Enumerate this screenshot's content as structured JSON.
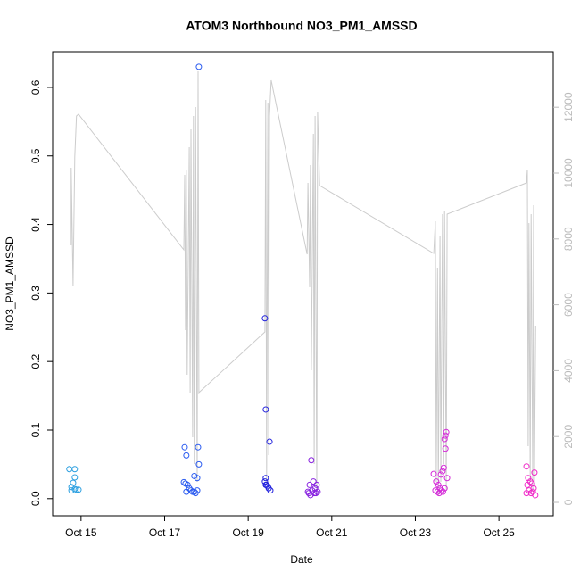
{
  "chart_data": {
    "type": "scatter",
    "title": "ATOM3 Northbound NO3_PM1_AMSSD",
    "xlabel": "Date",
    "ylabel": "NO3_PM1_AMSSD",
    "xlim": [
      14.32,
      26.3
    ],
    "xticks": [
      {
        "value": 15,
        "label": "Oct 15"
      },
      {
        "value": 17,
        "label": "Oct 17"
      },
      {
        "value": 19,
        "label": "Oct 19"
      },
      {
        "value": 21,
        "label": "Oct 21"
      },
      {
        "value": 23,
        "label": "Oct 23"
      },
      {
        "value": 25,
        "label": "Oct 25"
      }
    ],
    "ylim": [
      -0.025,
      0.652
    ],
    "yticks": [
      {
        "value": 0,
        "label": "0.0"
      },
      0.1,
      0.2,
      0.3,
      0.4,
      0.5,
      0.6
    ],
    "y2lim": [
      -406,
      13685
    ],
    "y2ticks": [
      0,
      2000,
      4000,
      6000,
      8000,
      10000,
      12000
    ],
    "y2color": "#bbbbbb",
    "series": [
      {
        "color": "#2b9fe0",
        "x": [
          14.72,
          14.85,
          14.85,
          14.81,
          14.77,
          14.85,
          14.89,
          14.94,
          14.77
        ],
        "values": [
          0.043,
          0.043,
          0.031,
          0.023,
          0.017,
          0.014,
          0.013,
          0.013,
          0.012
        ]
      },
      {
        "color": "#2a5bf0",
        "x": [
          17.48,
          17.52,
          17.8,
          17.82,
          17.82,
          17.71,
          17.78,
          17.46,
          17.5,
          17.55,
          17.59,
          17.63,
          17.67,
          17.71,
          17.74,
          17.78,
          17.52
        ],
        "values": [
          0.075,
          0.063,
          0.075,
          0.05,
          0.63,
          0.033,
          0.03,
          0.024,
          0.022,
          0.02,
          0.015,
          0.012,
          0.01,
          0.01,
          0.008,
          0.012,
          0.01
        ]
      },
      {
        "color": "#2222dd",
        "x": [
          19.4,
          19.42,
          19.51,
          19.42,
          19.4,
          19.44,
          19.47,
          19.49,
          19.53,
          19.42
        ],
        "values": [
          0.263,
          0.13,
          0.083,
          0.03,
          0.025,
          0.02,
          0.018,
          0.015,
          0.012,
          0.02
        ]
      },
      {
        "color": "#8822e0",
        "x": [
          20.51,
          20.43,
          20.47,
          20.56,
          20.6,
          20.64,
          20.49,
          20.58,
          20.62,
          20.66,
          20.53,
          20.45
        ],
        "values": [
          0.056,
          0.01,
          0.02,
          0.025,
          0.015,
          0.02,
          0.005,
          0.008,
          0.008,
          0.01,
          0.012,
          0.008
        ]
      },
      {
        "color": "#d42ad8",
        "x": [
          23.74,
          23.72,
          23.7,
          23.72,
          23.68,
          23.65,
          23.61,
          23.44,
          23.76,
          23.5,
          23.55,
          23.59,
          23.48,
          23.53,
          23.57,
          23.63,
          23.7,
          23.66
        ],
        "values": [
          0.097,
          0.092,
          0.087,
          0.073,
          0.045,
          0.04,
          0.035,
          0.036,
          0.03,
          0.025,
          0.02,
          0.015,
          0.012,
          0.01,
          0.008,
          0.012,
          0.015,
          0.01
        ]
      },
      {
        "color": "#f02ac8",
        "x": [
          25.66,
          25.85,
          25.7,
          25.75,
          25.79,
          25.68,
          25.83,
          25.72,
          25.81,
          25.77,
          25.66,
          25.87
        ],
        "values": [
          0.047,
          0.038,
          0.03,
          0.025,
          0.022,
          0.02,
          0.015,
          0.012,
          0.01,
          0.008,
          0.008,
          0.005
        ]
      },
      {
        "type": "line",
        "axis": "y2",
        "color": "#cccccc",
        "x": [
          14.765,
          14.765,
          14.81,
          14.85,
          14.89,
          14.94,
          17.46,
          17.48,
          17.5,
          17.52,
          17.54,
          17.59,
          17.61,
          17.63,
          17.67,
          17.69,
          17.71,
          17.74,
          17.78,
          17.8,
          17.82,
          19.4,
          19.42,
          19.44,
          19.47,
          19.49,
          19.51,
          19.55,
          20.41,
          20.43,
          20.47,
          20.49,
          20.51,
          20.56,
          20.58,
          20.6,
          20.64,
          20.66,
          20.71,
          23.44,
          23.48,
          23.5,
          23.53,
          23.55,
          23.59,
          23.61,
          23.65,
          23.68,
          23.7,
          23.74,
          23.76,
          25.66,
          25.68,
          25.7,
          25.72,
          25.75,
          25.77,
          25.81,
          25.83,
          25.85,
          25.88
        ],
        "values": [
          7805,
          10163,
          6585,
          10488,
          11735,
          11789,
          7669,
          9946,
          5230,
          10108,
          3875,
          10786,
          3333,
          11328,
          1978,
          11734,
          1165,
          12005,
          623,
          13089,
          3333,
          5176,
          12222,
          623,
          12141,
          1436,
          11734,
          12818,
          7534,
          9702,
          6531,
          10244,
          4011,
          11192,
          1165,
          11734,
          217,
          11870,
          9621,
          7561,
          8537,
          623,
          7127,
          217,
          8103,
          623,
          8753,
          1165,
          8862,
          352,
          8753,
          9702,
          10108,
          1707,
          8482,
          623,
          8753,
          352,
          9024,
          623,
          5366
        ]
      }
    ]
  }
}
